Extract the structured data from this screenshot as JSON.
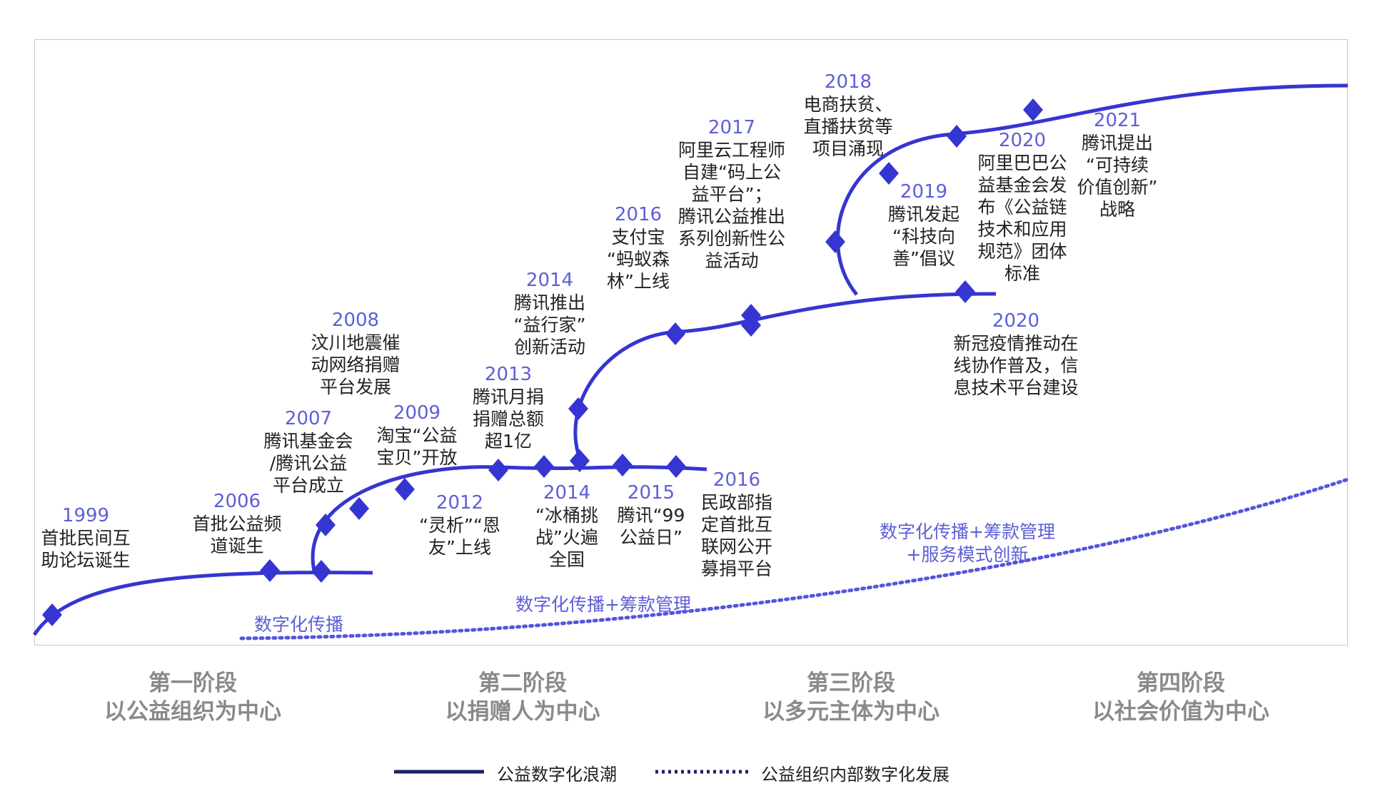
{
  "colors": {
    "wave": "#3535d2",
    "dotted": "#5555dd",
    "year": "#5d5fd6",
    "text": "#222222",
    "stage": "#8a8a8a",
    "legend_line": "#1e2068"
  },
  "icons": {
    "milestone": "diamond-marker"
  },
  "events": [
    {
      "year": "1999",
      "text": "首批民间互\n助论坛诞生"
    },
    {
      "year": "2006",
      "text": "首批公益频\n道诞生"
    },
    {
      "year": "2007",
      "text": "腾讯基金会\n/腾讯公益\n平台成立"
    },
    {
      "year": "2008",
      "text": "汶川地震催\n动网络捐赠\n平台发展"
    },
    {
      "year": "2009",
      "text": "淘宝“公益\n宝贝”开放"
    },
    {
      "year": "2012",
      "text": "“灵析”“恩\n友”上线"
    },
    {
      "year": "2013",
      "text": "腾讯月捐\n捐赠总额\n超1亿"
    },
    {
      "year": "2014",
      "text": "腾讯推出\n“益行家”\n创新活动"
    },
    {
      "year": "2014",
      "text": "“冰桶挑\n战”火遍\n全国"
    },
    {
      "year": "2015",
      "text": "腾讯“99\n公益日”"
    },
    {
      "year": "2016",
      "text": "民政部指\n定首批互\n联网公开\n募捐平台"
    },
    {
      "year": "2016",
      "text": "支付宝\n“蚂蚁森\n林”上线"
    },
    {
      "year": "2017",
      "text": "阿里云工程师\n自建“码上公\n益平台”；\n腾讯公益推出\n系列创新性公\n益活动"
    },
    {
      "year": "2018",
      "text": "电商扶贫、\n直播扶贫等\n项目涌现"
    },
    {
      "year": "2019",
      "text": "腾讯发起\n“科技向\n善”倡议"
    },
    {
      "year": "2020",
      "text": "阿里巴巴公\n益基金会发\n布《公益链\n技术和应用\n规范》团体\n标准"
    },
    {
      "year": "2020",
      "text": "新冠疫情推动在\n线协作普及，信\n息技术平台建设"
    },
    {
      "year": "2021",
      "text": "腾讯提出\n“可持续\n价值创新”\n战略"
    }
  ],
  "flow_labels": [
    "数字化传播",
    "数字化传播+筹款管理",
    "数字化传播+筹款管理\n+服务模式创新"
  ],
  "stages": [
    {
      "name": "第一阶段",
      "focus": "以公益组织为中心"
    },
    {
      "name": "第二阶段",
      "focus": "以捐赠人为中心"
    },
    {
      "name": "第三阶段",
      "focus": "以多元主体为中心"
    },
    {
      "name": "第四阶段",
      "focus": "以社会价值为中心"
    }
  ],
  "legend": {
    "solid": "公益数字化浪潮",
    "dotted": "公益组织内部数字化发展"
  }
}
